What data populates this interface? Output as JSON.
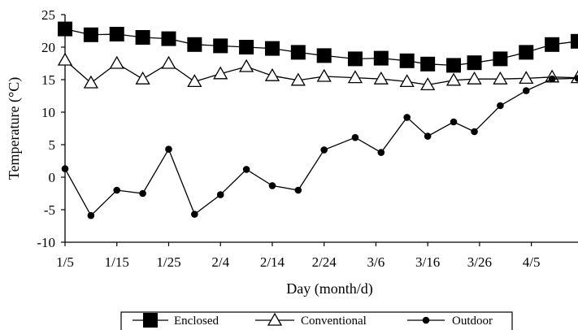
{
  "chart_data": {
    "type": "line",
    "title": "",
    "xlabel": "Day (month/d)",
    "ylabel": "Temperature (°C)",
    "ylim": [
      -10,
      25
    ],
    "yticks": [
      -10,
      -5,
      0,
      5,
      10,
      15,
      20,
      25
    ],
    "xlim": [
      0,
      99
    ],
    "xticks": [
      {
        "x": 0,
        "label": "1/5"
      },
      {
        "x": 10,
        "label": "1/15"
      },
      {
        "x": 20,
        "label": "1/25"
      },
      {
        "x": 30,
        "label": "2/4"
      },
      {
        "x": 40,
        "label": "2/14"
      },
      {
        "x": 50,
        "label": "2/24"
      },
      {
        "x": 60,
        "label": "3/6"
      },
      {
        "x": 70,
        "label": "3/16"
      },
      {
        "x": 80,
        "label": "3/26"
      },
      {
        "x": 90,
        "label": "4/5"
      }
    ],
    "x": [
      0,
      5,
      10,
      15,
      20,
      25,
      30,
      35,
      40,
      45,
      50,
      56,
      61,
      66,
      70,
      75,
      79,
      84,
      89,
      94,
      99
    ],
    "grid": false,
    "legend_position": "bottom",
    "series": [
      {
        "name": "Enclosed",
        "marker": "filled-square",
        "color": "#000000",
        "values": [
          22.8,
          21.9,
          22.0,
          21.5,
          21.3,
          20.4,
          20.2,
          20.0,
          19.8,
          19.2,
          18.7,
          18.2,
          18.3,
          17.9,
          17.4,
          17.2,
          17.6,
          18.2,
          19.2,
          20.4,
          20.9
        ]
      },
      {
        "name": "Conventional",
        "marker": "open-triangle",
        "color": "#000000",
        "values": [
          18.0,
          14.5,
          17.5,
          15.1,
          17.5,
          14.7,
          15.9,
          17.0,
          15.6,
          14.9,
          15.5,
          15.3,
          15.1,
          14.7,
          14.2,
          14.9,
          15.1,
          15.1,
          15.2,
          15.4,
          15.3
        ]
      },
      {
        "name": "Outdoor",
        "marker": "filled-circle",
        "color": "#000000",
        "values": [
          1.3,
          -5.9,
          -2.0,
          -2.5,
          4.3,
          -5.7,
          -2.7,
          1.2,
          -1.3,
          -2.0,
          4.2,
          6.1,
          3.8,
          9.2,
          6.3,
          8.5,
          7.0,
          11.0,
          13.3,
          15.1,
          15.2
        ]
      }
    ]
  }
}
